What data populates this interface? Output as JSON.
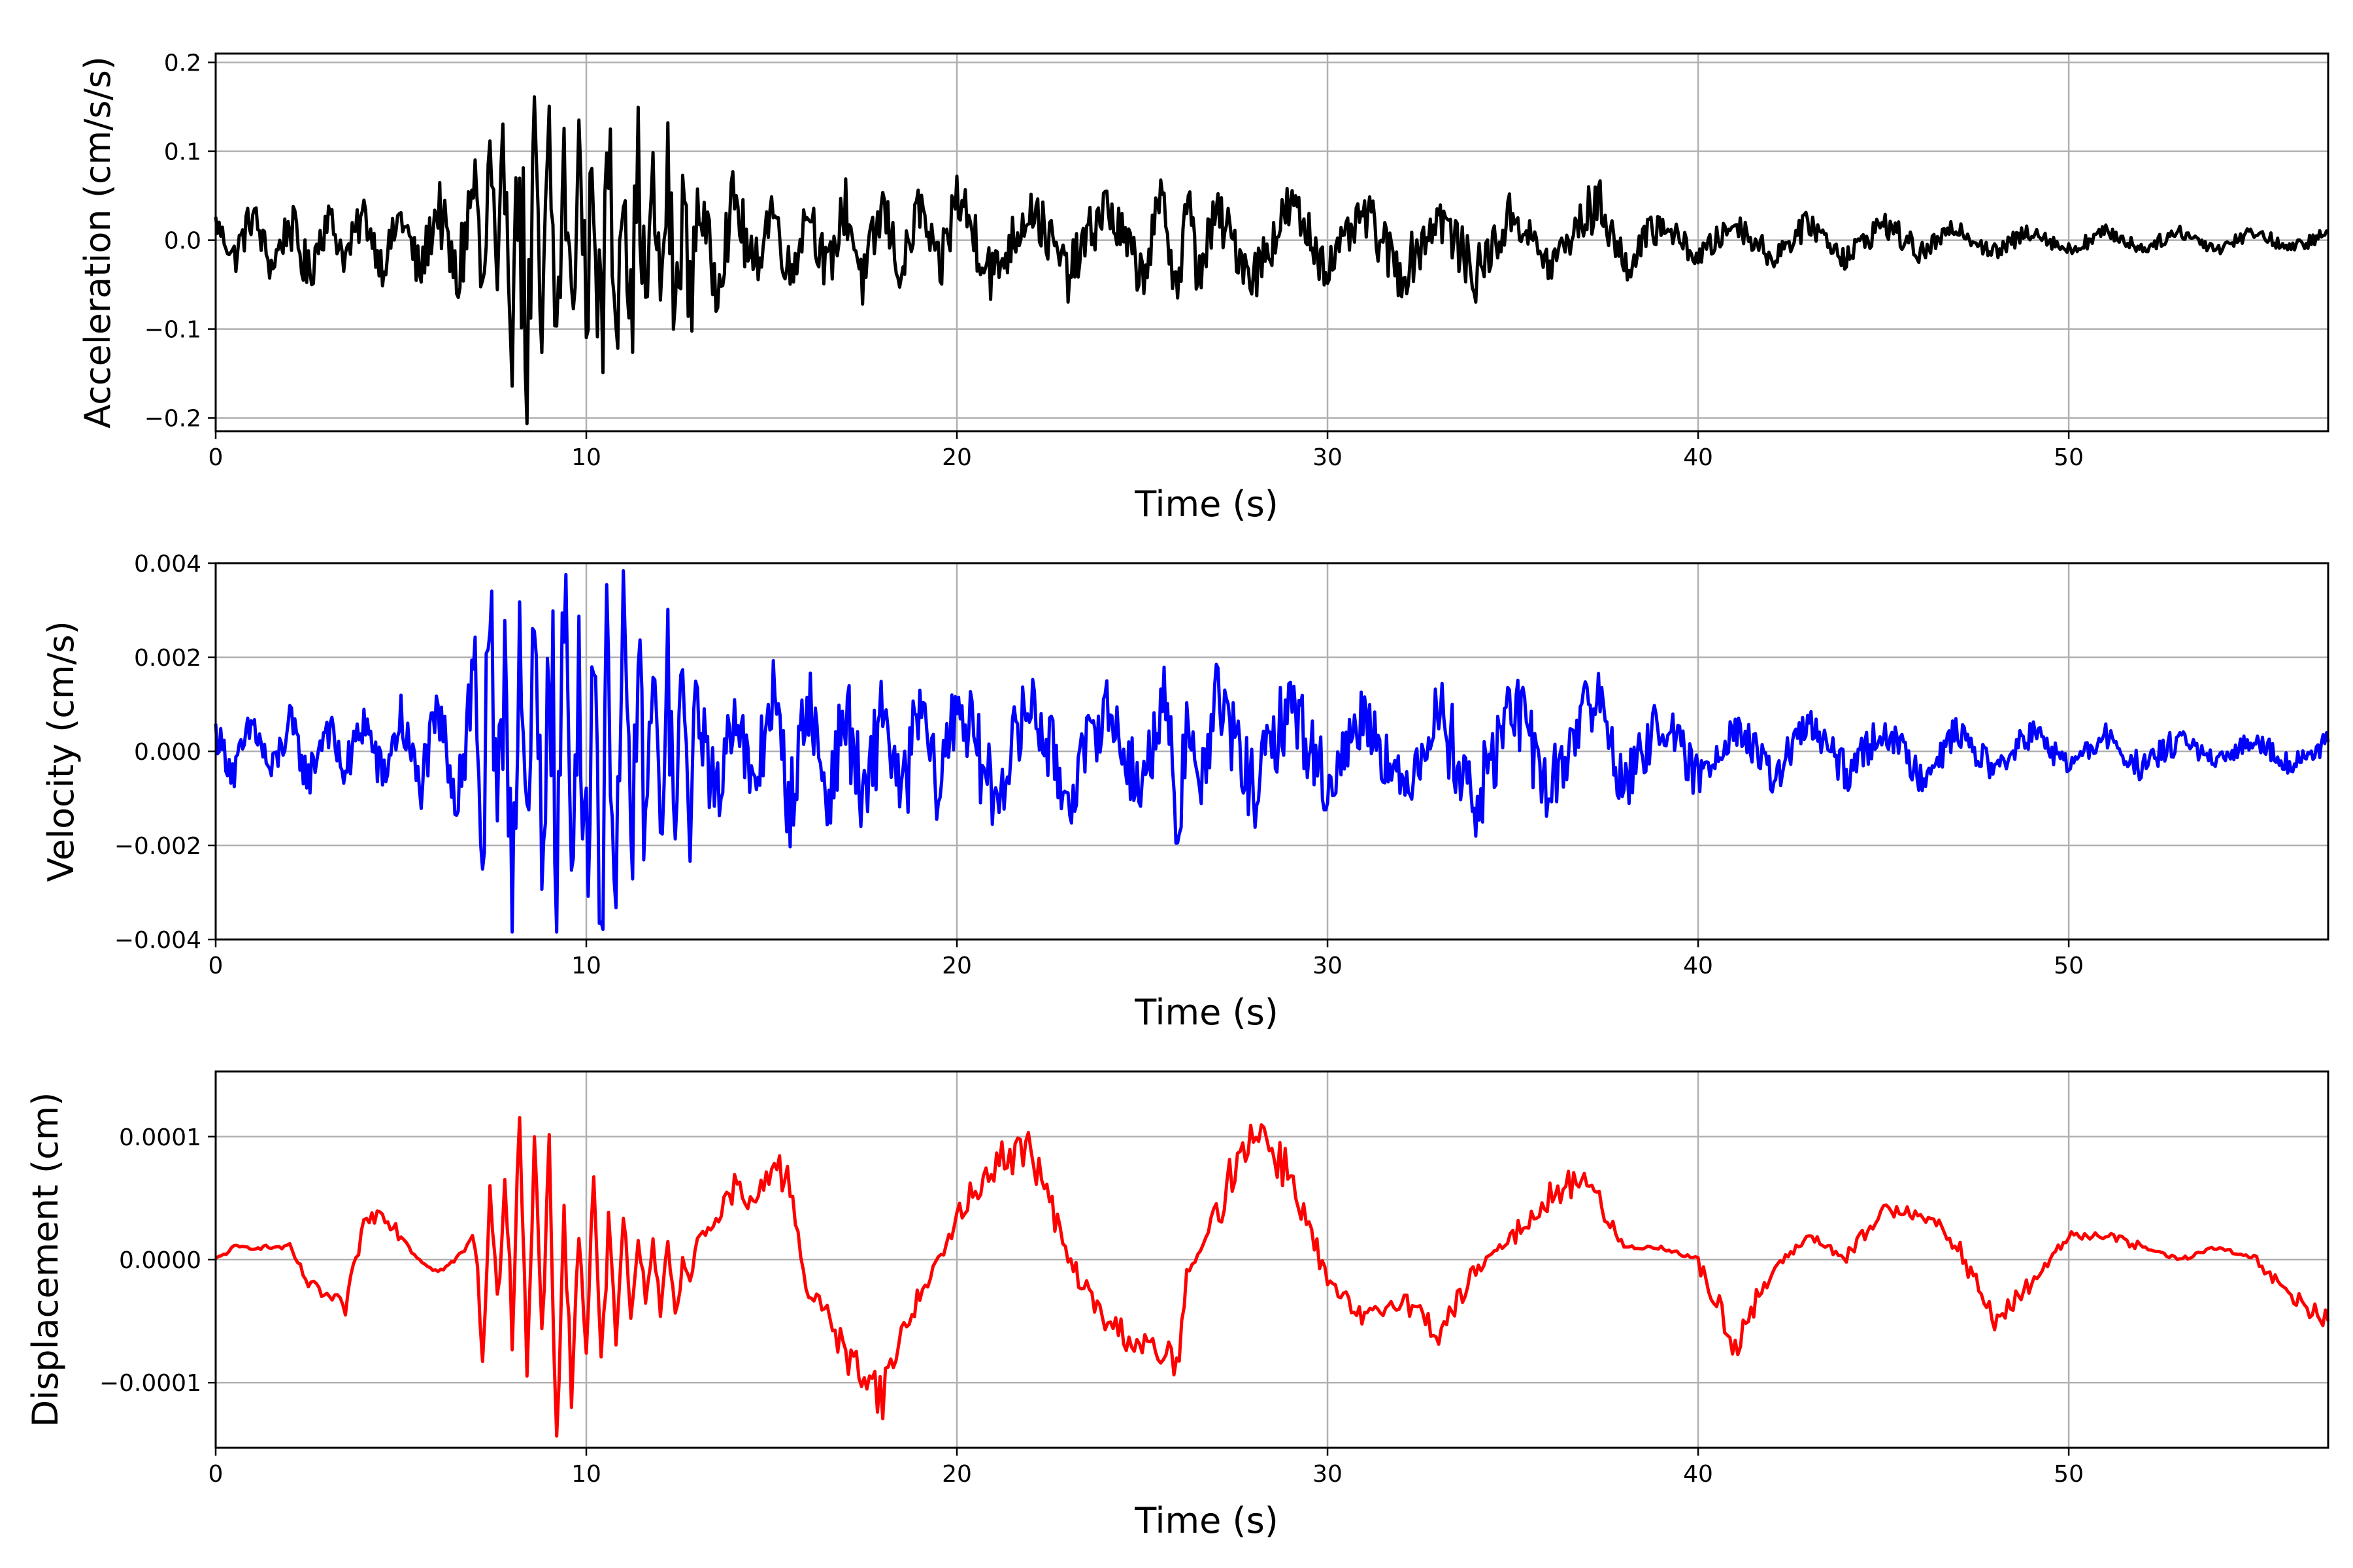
{
  "chart_data": [
    {
      "type": "line",
      "xlabel": "Time (s)",
      "ylabel": "Acceleration (cm/s/s)",
      "xlim": [
        0,
        57
      ],
      "ylim": [
        -0.215,
        0.21
      ],
      "x_ticks": [
        0,
        10,
        20,
        30,
        40,
        50
      ],
      "x_tick_labels": [
        "0",
        "10",
        "20",
        "30",
        "40",
        "50"
      ],
      "y_ticks": [
        -0.2,
        -0.1,
        0.0,
        0.1,
        0.2
      ],
      "y_tick_labels": [
        "−0.2",
        "−0.1",
        "0.0",
        "0.1",
        "0.2"
      ],
      "grid": true,
      "series": [
        {
          "color": "#000000",
          "x": [
            0.0,
            0.5,
            1.0,
            1.5,
            2.0,
            2.5,
            3.0,
            3.5,
            4.0,
            4.5,
            5.0,
            5.5,
            6.0,
            6.5,
            7.0,
            7.2,
            7.4,
            7.6,
            7.8,
            8.0,
            8.2,
            8.4,
            8.6,
            8.8,
            9.0,
            9.2,
            9.4,
            9.6,
            9.8,
            10.0,
            10.2,
            10.4,
            10.6,
            10.8,
            11.0,
            11.2,
            11.4,
            11.6,
            11.8,
            12.0,
            12.2,
            12.4,
            12.6,
            12.8,
            13.0,
            13.5,
            14.0,
            14.5,
            15.0,
            15.5,
            16.0,
            16.5,
            17.0,
            17.5,
            18.0,
            18.5,
            19.0,
            19.5,
            20.0,
            21.0,
            22.0,
            23.0,
            24.0,
            25.0,
            25.5,
            26.0,
            26.2,
            26.5,
            27.0,
            28.0,
            29.0,
            30.0,
            31.0,
            32.0,
            33.0,
            34.0,
            35.0,
            36.0,
            37.0,
            37.4,
            38.0,
            39.0,
            40.0,
            41.0,
            42.0,
            43.0,
            44.0,
            45.0,
            46.0,
            47.0,
            48.0,
            49.0,
            50.0,
            51.0,
            52.0,
            53.0,
            54.0,
            55.0,
            56.0,
            57.0
          ],
          "y": [
            0.02,
            -0.02,
            0.03,
            -0.03,
            0.02,
            -0.04,
            0.03,
            -0.02,
            0.03,
            -0.03,
            0.03,
            -0.04,
            0.04,
            -0.05,
            0.07,
            -0.08,
            0.09,
            -0.12,
            0.11,
            -0.09,
            0.1,
            -0.19,
            0.08,
            -0.13,
            0.1,
            -0.12,
            0.09,
            -0.1,
            0.11,
            -0.08,
            0.1,
            -0.14,
            0.11,
            -0.09,
            0.11,
            -0.1,
            0.09,
            -0.08,
            0.06,
            -0.06,
            0.07,
            -0.1,
            0.06,
            -0.08,
            0.05,
            -0.05,
            0.05,
            -0.04,
            0.04,
            -0.04,
            0.04,
            -0.04,
            0.04,
            -0.05,
            0.04,
            -0.04,
            0.04,
            -0.04,
            0.05,
            -0.04,
            0.04,
            -0.04,
            0.04,
            -0.04,
            0.04,
            -0.05,
            0.05,
            -0.04,
            0.03,
            -0.04,
            0.04,
            -0.03,
            0.03,
            -0.04,
            0.03,
            -0.04,
            0.03,
            -0.03,
            0.03,
            0.04,
            -0.03,
            0.02,
            -0.02,
            0.02,
            -0.02,
            0.02,
            -0.02,
            0.02,
            -0.015,
            0.015,
            -0.015,
            0.012,
            -0.012,
            0.01,
            -0.01,
            0.01,
            -0.01,
            0.01,
            -0.01,
            0.008
          ]
        }
      ]
    },
    {
      "type": "line",
      "xlabel": "Time (s)",
      "ylabel": "Velocity (cm/s)",
      "xlim": [
        0,
        57
      ],
      "ylim": [
        -0.004,
        0.004
      ],
      "x_ticks": [
        0,
        10,
        20,
        30,
        40,
        50
      ],
      "x_tick_labels": [
        "0",
        "10",
        "20",
        "30",
        "40",
        "50"
      ],
      "y_ticks": [
        -0.004,
        -0.002,
        0.0,
        0.002,
        0.004
      ],
      "y_tick_labels": [
        "−0.004",
        "−0.002",
        "0.000",
        "0.002",
        "0.004"
      ],
      "grid": true,
      "series": [
        {
          "color": "#0000ff",
          "x": [
            0.0,
            0.5,
            1.0,
            1.5,
            2.0,
            2.5,
            3.0,
            3.5,
            4.0,
            4.5,
            5.0,
            5.5,
            6.0,
            6.5,
            7.0,
            7.2,
            7.4,
            7.6,
            7.8,
            8.0,
            8.2,
            8.4,
            8.6,
            8.8,
            9.0,
            9.2,
            9.4,
            9.6,
            9.8,
            10.0,
            10.2,
            10.4,
            10.6,
            10.8,
            11.0,
            11.2,
            11.4,
            11.6,
            11.8,
            12.0,
            12.2,
            12.4,
            12.6,
            12.8,
            13.0,
            13.5,
            14.0,
            14.5,
            15.0,
            15.5,
            16.0,
            16.5,
            17.0,
            17.5,
            18.0,
            18.5,
            19.0,
            19.5,
            20.0,
            21.0,
            22.0,
            23.0,
            24.0,
            25.0,
            25.5,
            26.0,
            26.2,
            26.5,
            27.0,
            28.0,
            29.0,
            30.0,
            31.0,
            32.0,
            33.0,
            34.0,
            35.0,
            36.0,
            37.0,
            37.4,
            38.0,
            39.0,
            40.0,
            41.0,
            42.0,
            43.0,
            44.0,
            45.0,
            46.0,
            47.0,
            48.0,
            49.0,
            50.0,
            51.0,
            52.0,
            53.0,
            54.0,
            55.0,
            56.0,
            57.0
          ],
          "y": [
            0.0004,
            -0.0005,
            0.0006,
            -0.0005,
            0.0006,
            -0.0006,
            0.0006,
            -0.0005,
            0.0007,
            -0.0006,
            0.0007,
            -0.0008,
            0.0008,
            -0.0009,
            0.0018,
            -0.0023,
            0.0026,
            -0.0033,
            0.0028,
            -0.0025,
            0.0027,
            -0.0035,
            0.0024,
            -0.003,
            0.0037,
            -0.0032,
            0.0031,
            -0.0028,
            0.0025,
            -0.0026,
            0.0027,
            -0.0034,
            0.0026,
            -0.0031,
            0.0024,
            -0.0025,
            0.002,
            -0.0018,
            0.0016,
            -0.0017,
            0.0017,
            -0.0019,
            0.0014,
            -0.0014,
            0.0012,
            -0.0012,
            0.0012,
            -0.0011,
            0.0013,
            -0.0012,
            0.0012,
            -0.0011,
            0.0009,
            -0.0014,
            0.0011,
            -0.0012,
            0.001,
            -0.0009,
            0.0012,
            -0.001,
            0.0011,
            -0.001,
            0.001,
            -0.0009,
            0.0011,
            -0.0016,
            0.0012,
            -0.001,
            0.0012,
            -0.0009,
            0.0011,
            -0.0008,
            0.0009,
            -0.0009,
            0.0009,
            -0.0012,
            0.0011,
            -0.0009,
            0.0011,
            0.0009,
            -0.0008,
            0.0007,
            -0.0006,
            0.0006,
            -0.0006,
            0.0006,
            -0.0005,
            0.0005,
            -0.0005,
            0.0004,
            -0.0004,
            0.0004,
            -0.0003,
            0.0003,
            -0.0004,
            0.0003,
            -0.0003,
            0.0003,
            -0.0003,
            0.0002
          ]
        }
      ]
    },
    {
      "type": "line",
      "xlabel": "Time (s)",
      "ylabel": "Displacement (cm)",
      "xlim": [
        0,
        57
      ],
      "ylim": [
        -0.000153,
        0.000153
      ],
      "x_ticks": [
        0,
        10,
        20,
        30,
        40,
        50
      ],
      "x_tick_labels": [
        "0",
        "10",
        "20",
        "30",
        "40",
        "50"
      ],
      "y_ticks": [
        -0.0001,
        0.0,
        0.0001
      ],
      "y_tick_labels": [
        "−0.0001",
        "0.0000",
        "0.0001"
      ],
      "grid": true,
      "series": [
        {
          "color": "#ff0000",
          "x": [
            0.0,
            0.5,
            1.0,
            1.5,
            2.0,
            2.5,
            3.0,
            3.5,
            4.0,
            4.5,
            5.0,
            5.5,
            6.0,
            6.5,
            7.0,
            7.2,
            7.4,
            7.6,
            7.8,
            8.0,
            8.2,
            8.4,
            8.6,
            8.8,
            9.0,
            9.2,
            9.4,
            9.6,
            9.8,
            10.0,
            10.2,
            10.4,
            10.6,
            10.8,
            11.0,
            11.2,
            11.4,
            11.6,
            11.8,
            12.0,
            12.2,
            12.4,
            12.6,
            12.8,
            13.0,
            13.5,
            14.0,
            14.5,
            15.0,
            15.5,
            16.0,
            16.5,
            17.0,
            17.5,
            18.0,
            18.5,
            19.0,
            19.5,
            20.0,
            21.0,
            22.0,
            23.0,
            24.0,
            25.0,
            25.5,
            26.0,
            26.2,
            26.5,
            27.0,
            28.0,
            29.0,
            30.0,
            31.0,
            32.0,
            33.0,
            34.0,
            35.0,
            36.0,
            37.0,
            37.4,
            38.0,
            39.0,
            40.0,
            41.0,
            42.0,
            43.0,
            44.0,
            45.0,
            46.0,
            47.0,
            48.0,
            49.0,
            50.0,
            51.0,
            52.0,
            53.0,
            54.0,
            55.0,
            56.0,
            57.0
          ],
          "y": [
            0.0,
            1e-05,
            1e-05,
            1e-05,
            1e-05,
            -2e-05,
            -3e-05,
            -4e-05,
            3e-05,
            4e-05,
            2e-05,
            0.0,
            -1e-05,
            0.0,
            2e-05,
            -8e-05,
            6e-05,
            -4e-05,
            7e-05,
            -5e-05,
            0.00013,
            -0.0001,
            9e-05,
            -6e-05,
            8e-05,
            -0.00014,
            4e-05,
            -0.00011,
            2e-05,
            -7e-05,
            6e-05,
            -9e-05,
            3e-05,
            -6e-05,
            4e-05,
            -5e-05,
            2e-05,
            -3e-05,
            1e-05,
            -4e-05,
            2e-05,
            -5e-05,
            0.0,
            -2e-05,
            2e-05,
            3e-05,
            6e-05,
            4e-05,
            8e-05,
            6e-05,
            -3e-05,
            -4e-05,
            -8e-05,
            -9e-05,
            -0.00011,
            -6e-05,
            -3e-05,
            0.0,
            3e-05,
            8e-05,
            9e-05,
            0.0,
            -5e-05,
            -7e-05,
            -8e-05,
            -8e-05,
            -1e-05,
            0.0,
            4e-05,
            0.00011,
            7e-05,
            -2e-05,
            -5e-05,
            -3e-05,
            -6e-05,
            -1e-05,
            2e-05,
            5e-05,
            7e-05,
            4e-05,
            1e-05,
            1e-05,
            0.0,
            -7e-05,
            -1e-05,
            2e-05,
            0.0,
            4e-05,
            4e-05,
            1e-05,
            -5e-05,
            -2e-05,
            2e-05,
            2e-05,
            1e-05,
            0.0,
            1e-05,
            0.0,
            -3e-05,
            -5e-05
          ]
        }
      ]
    }
  ]
}
